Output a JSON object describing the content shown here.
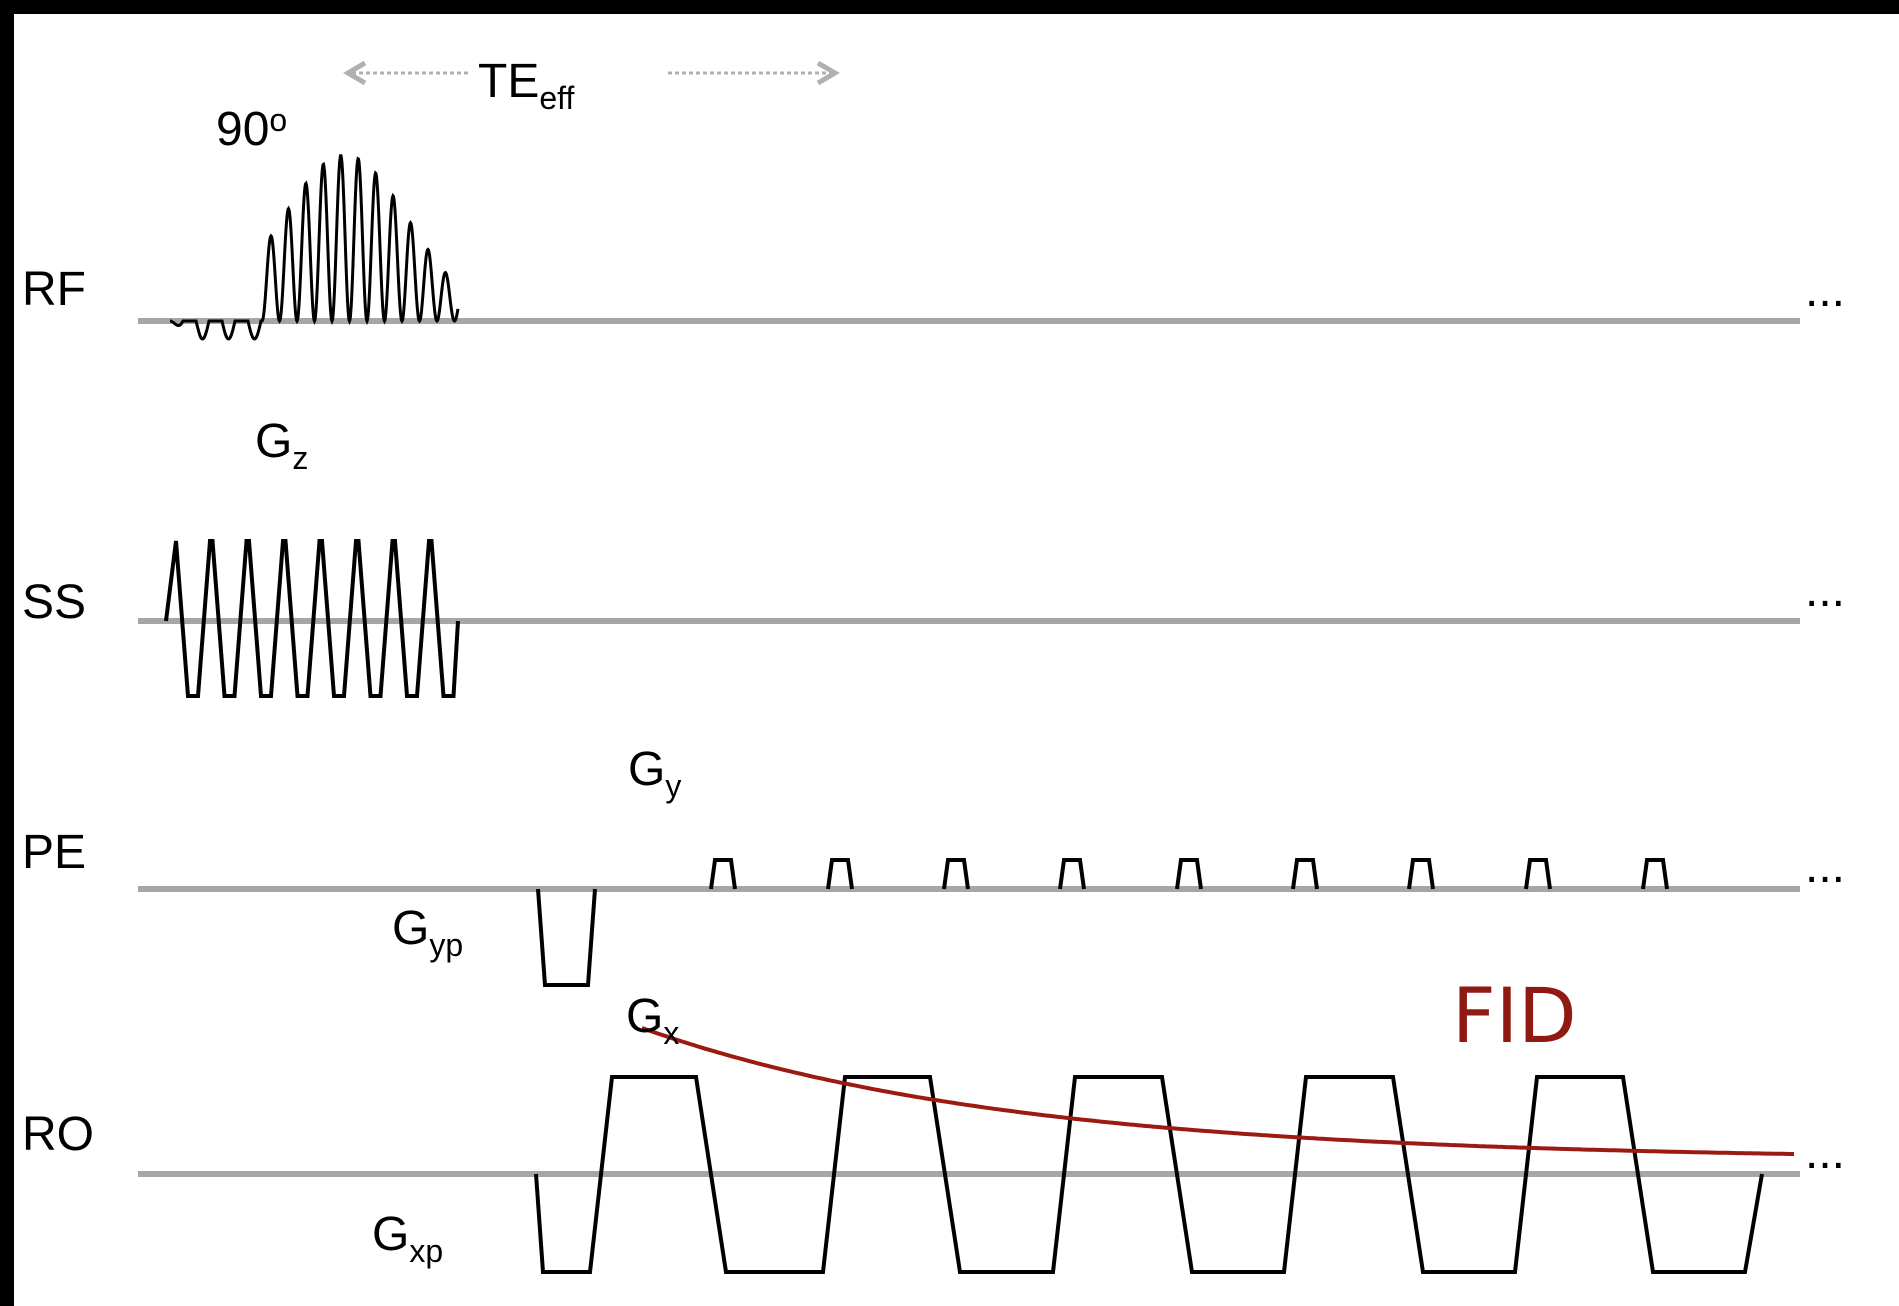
{
  "rows": {
    "rf": "RF",
    "ss": "SS",
    "pe": "PE",
    "ro": "RO"
  },
  "flip_angle": {
    "value": "90",
    "unit": "o"
  },
  "te": {
    "main": "TE",
    "sub": "eff"
  },
  "gradients": {
    "gz": {
      "main": "G",
      "sub": "z"
    },
    "gy": {
      "main": "G",
      "sub": "y"
    },
    "gyp": {
      "main": "G",
      "sub": "yp"
    },
    "gx": {
      "main": "G",
      "sub": "x"
    },
    "gxp": {
      "main": "G",
      "sub": "xp"
    }
  },
  "fid_label": "FID",
  "continuation": "...",
  "colors": {
    "baseline": "#a6a6a6",
    "waveform": "#000000",
    "fid_curve": "#9b1b13",
    "arrow": "#b0b0b0"
  }
}
